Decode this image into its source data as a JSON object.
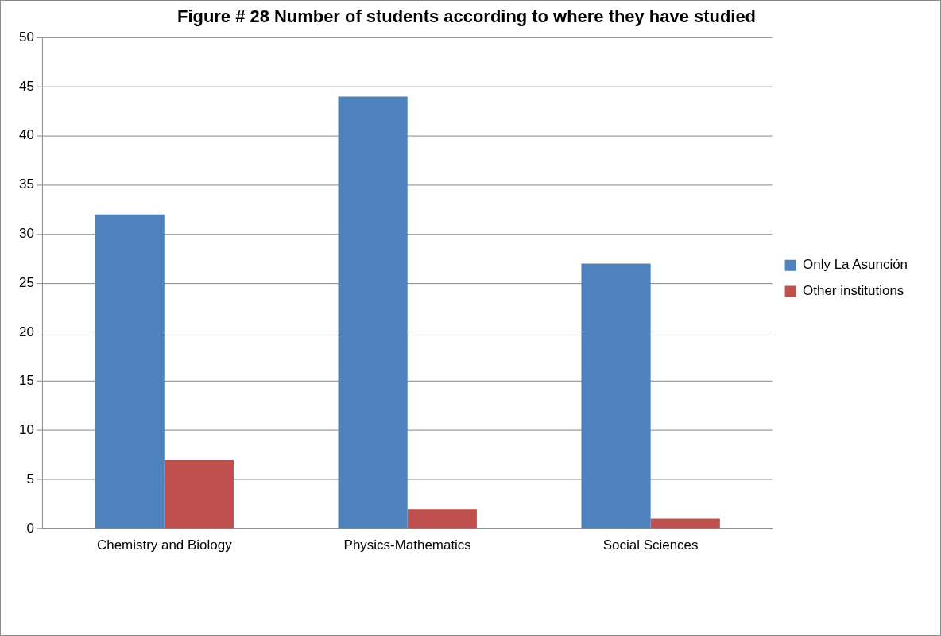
{
  "chart_data": {
    "type": "bar",
    "title": "Figure # 28 Number of students according to where they have studied",
    "categories": [
      "Chemistry and Biology",
      "Physics-Mathematics",
      "Social Sciences"
    ],
    "series": [
      {
        "name": "Only La Asunción",
        "color": "#4f81bd",
        "values": [
          32,
          44,
          27
        ]
      },
      {
        "name": "Other institutions",
        "color": "#c0504d",
        "values": [
          7,
          2,
          1
        ]
      }
    ],
    "ylim": [
      0,
      50
    ],
    "yticks": [
      0,
      5,
      10,
      15,
      20,
      25,
      30,
      35,
      40,
      45,
      50
    ],
    "grid": "y",
    "legend": "right"
  }
}
